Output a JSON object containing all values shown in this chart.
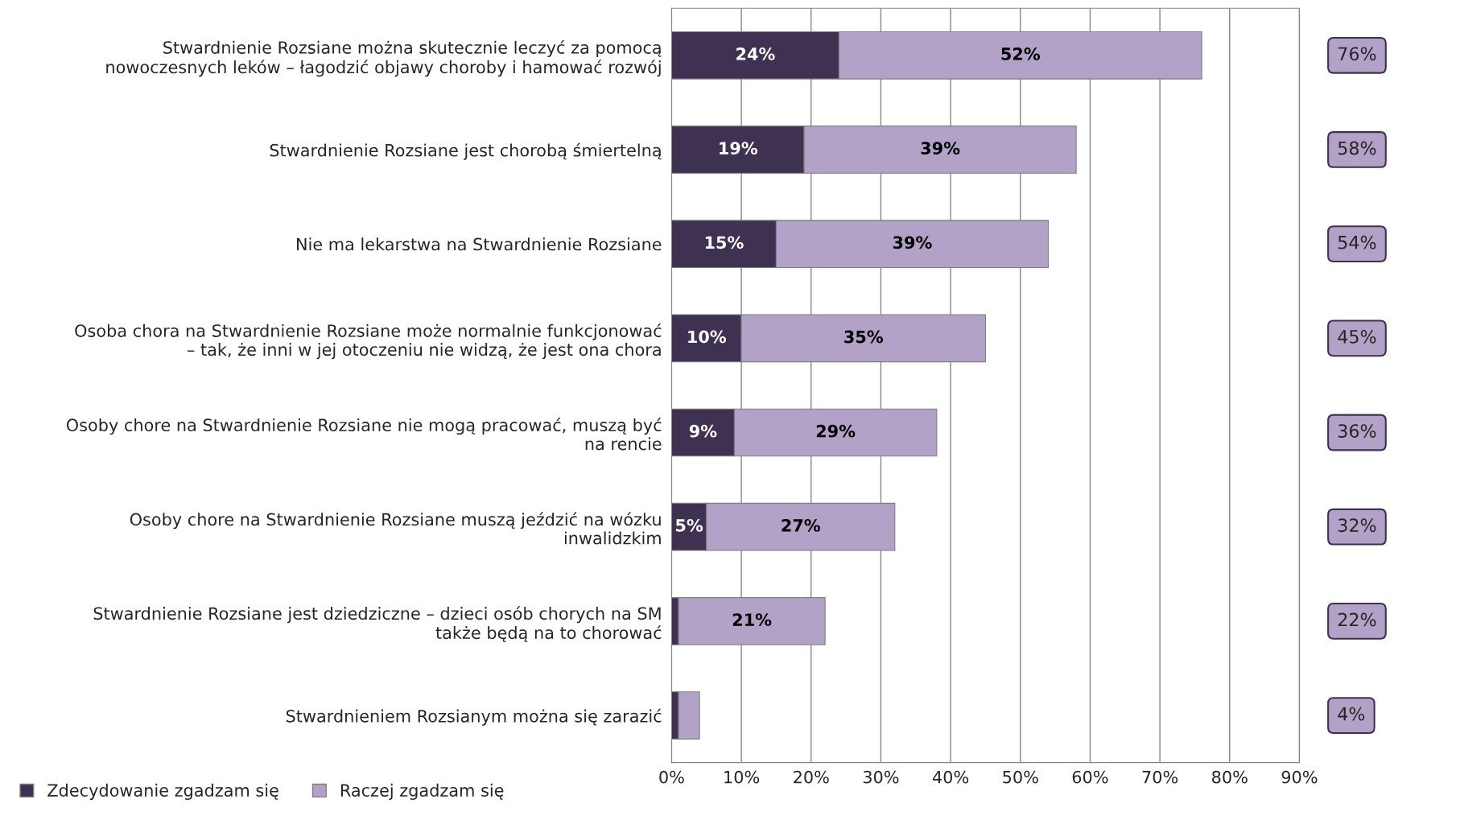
{
  "chart_data": {
    "type": "bar",
    "orientation": "horizontal",
    "stacked": true,
    "categories": [
      "Stwardnienie Rozsiane można skutecznie leczyć za pomocą\nnowoczesnych leków – łagodzić objawy choroby i hamować rozwój",
      "Stwardnienie Rozsiane jest chorobą śmiertelną",
      "Nie ma lekarstwa na Stwardnienie Rozsiane",
      "Osoba chora na Stwardnienie Rozsiane może normalnie funkcjonować\n– tak, że inni w jej otoczeniu nie widzą, że jest ona chora",
      "Osoby chore na Stwardnienie Rozsiane nie mogą pracować, muszą być\nna rencie",
      "Osoby chore na Stwardnienie Rozsiane muszą jeździć na wózku\ninwalidzkim",
      "Stwardnienie Rozsiane jest dziedziczne – dzieci osób chorych na SM\ntakże będą na to chorować",
      "Stwardnieniem Rozsianym można się zarazić"
    ],
    "series": [
      {
        "name": "Zdecydowanie zgadzam się",
        "color": "#3f3151",
        "values": [
          24,
          19,
          15,
          10,
          9,
          5,
          1,
          1
        ],
        "value_labels": [
          "24%",
          "19%",
          "15%",
          "10%",
          "9%",
          "5%",
          null,
          null
        ]
      },
      {
        "name": "Raczej zgadzam się",
        "color": "#b3a2c7",
        "values": [
          52,
          39,
          39,
          35,
          29,
          27,
          21,
          3
        ],
        "value_labels": [
          "52%",
          "39%",
          "39%",
          "35%",
          "29%",
          "27%",
          "21%",
          null
        ]
      }
    ],
    "annotations": [
      "76%",
      "58%",
      "54%",
      "45%",
      "36%",
      "32%",
      "22%",
      "4%"
    ],
    "xlim": [
      0,
      90
    ],
    "xticks": [
      {
        "value": 0,
        "label": "0%"
      },
      {
        "value": 10,
        "label": "10%"
      },
      {
        "value": 20,
        "label": "20%"
      },
      {
        "value": 30,
        "label": "30%"
      },
      {
        "value": 40,
        "label": "40%"
      },
      {
        "value": 50,
        "label": "50%"
      },
      {
        "value": 60,
        "label": "60%"
      },
      {
        "value": 70,
        "label": "70%"
      },
      {
        "value": 80,
        "label": "80%"
      },
      {
        "value": 90,
        "label": "90%"
      }
    ],
    "grid": "x",
    "legend": "bottom left"
  }
}
